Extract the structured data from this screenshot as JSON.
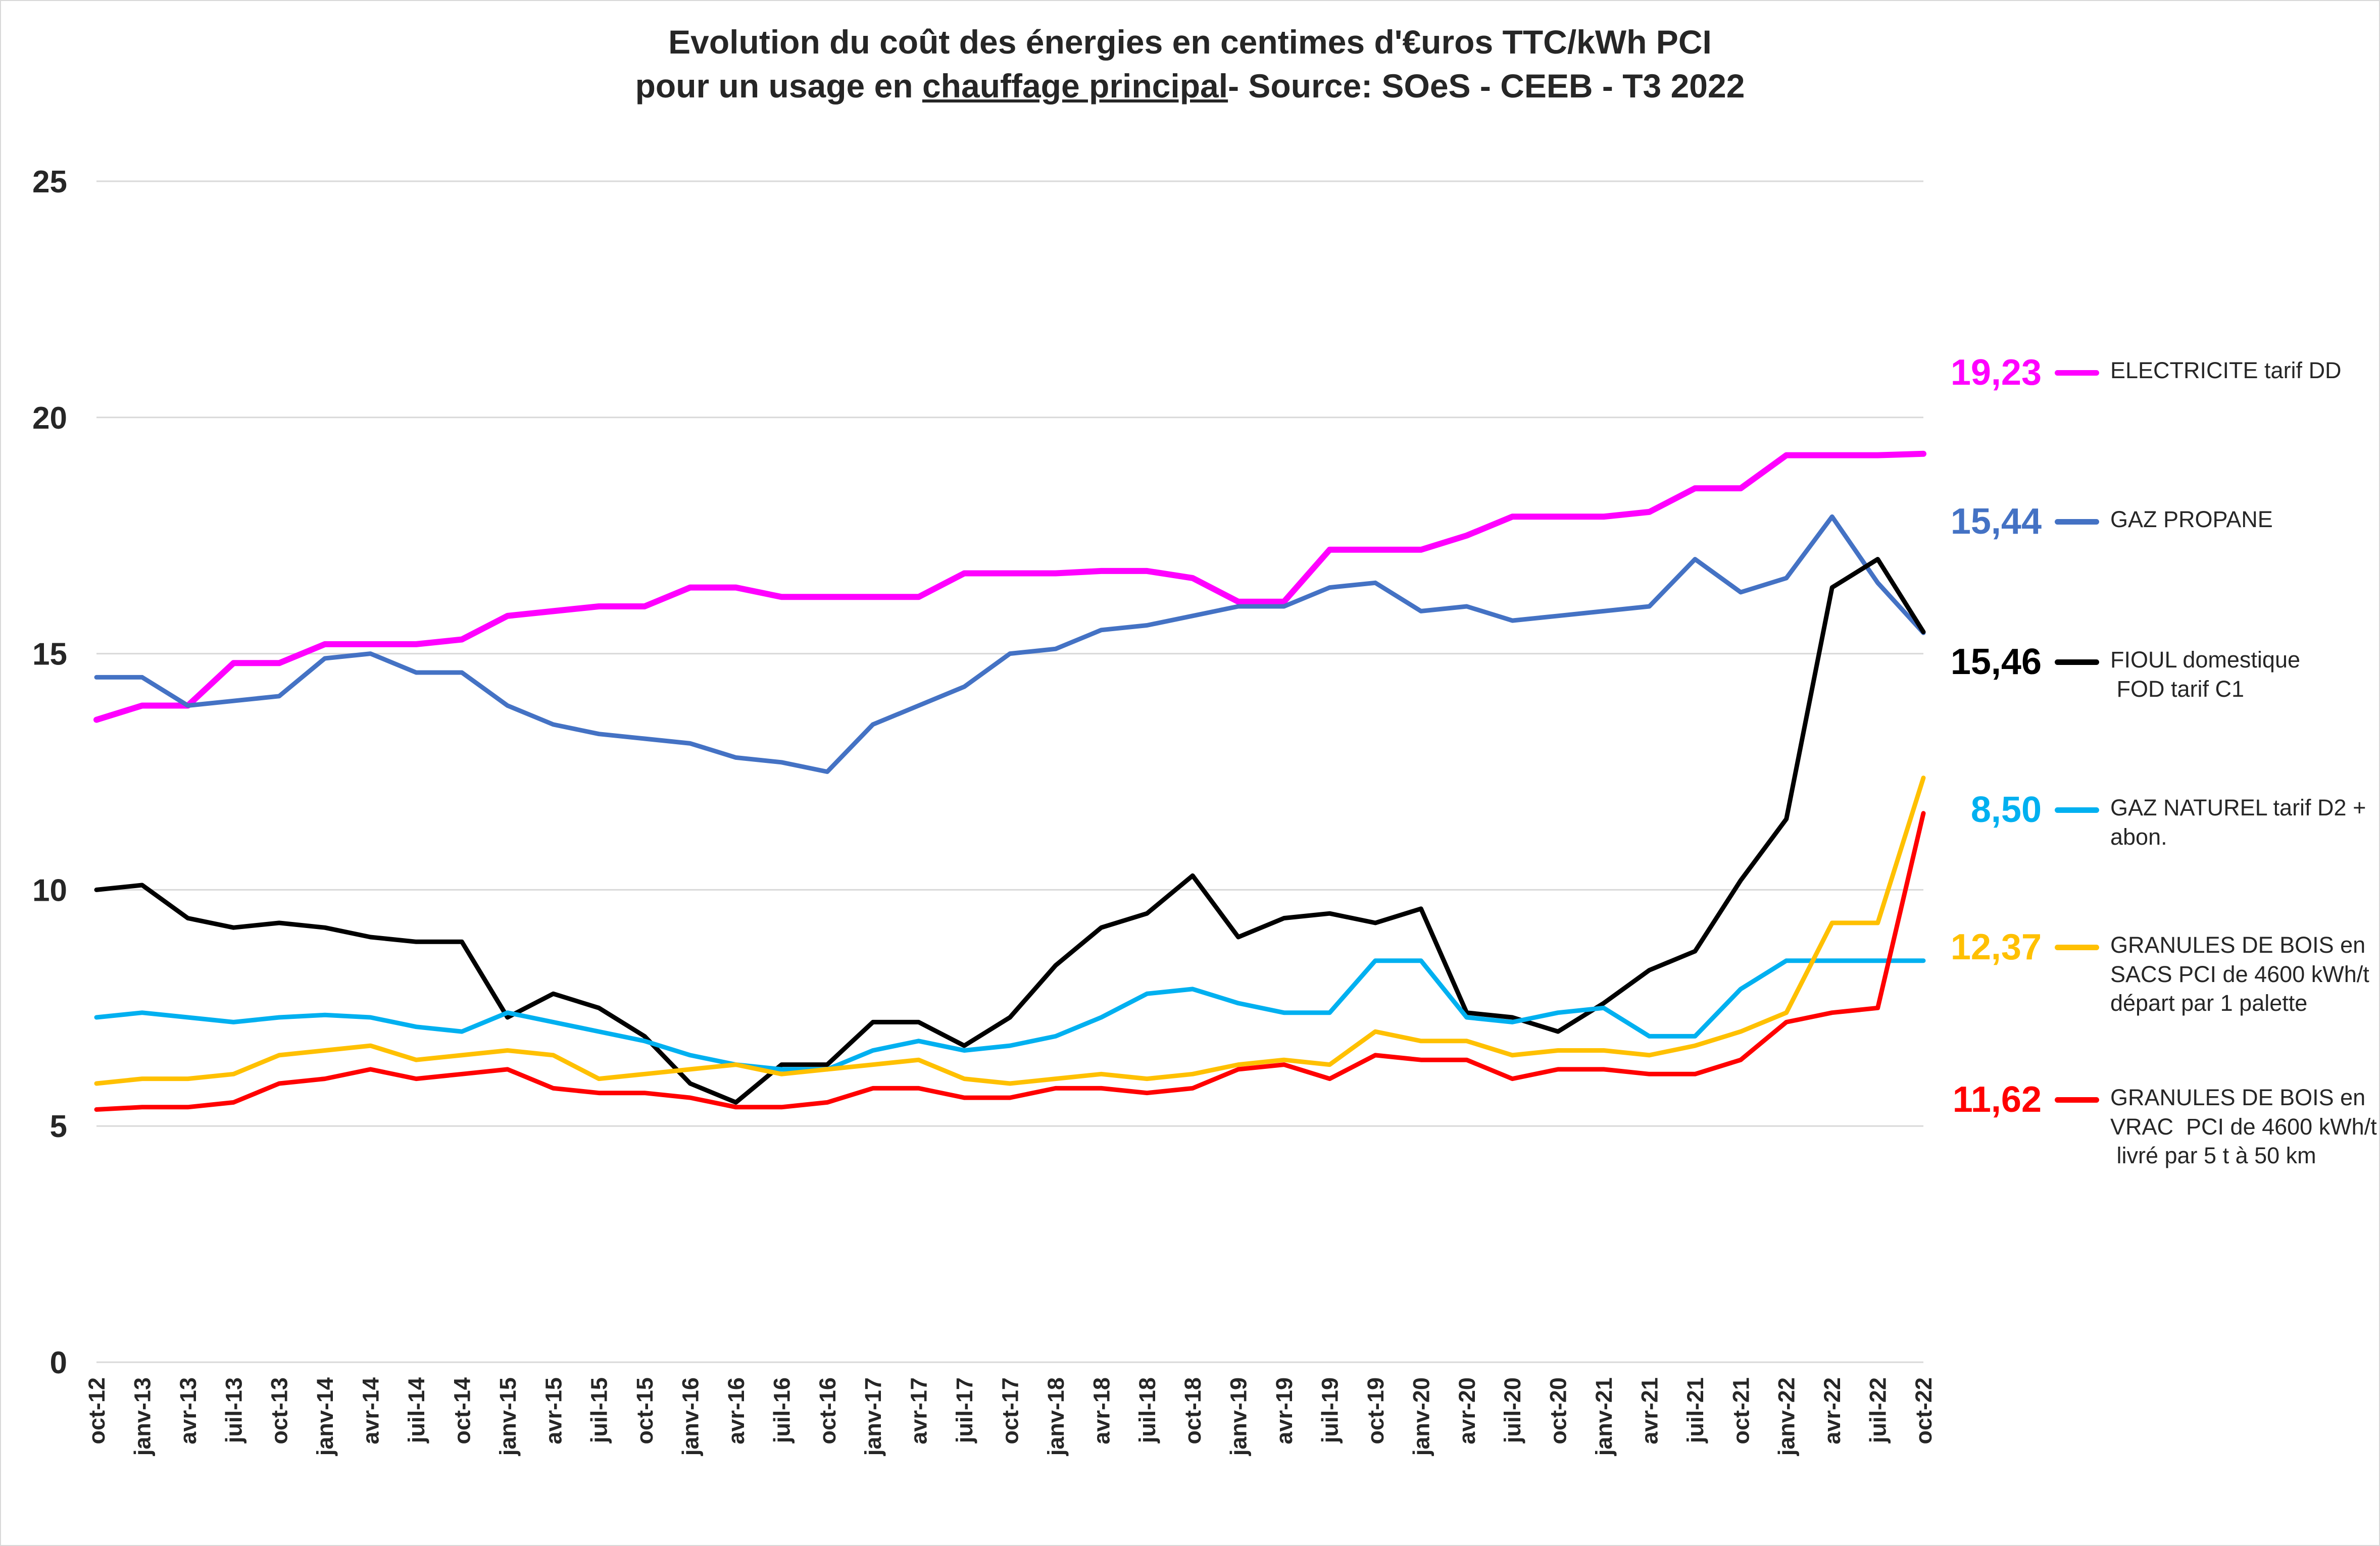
{
  "title": {
    "line1": "Evolution du coût des énergies en centimes d'€uros TTC/kWh PCI",
    "line2_prefix": "pour un usage en ",
    "line2_underlined": "chauffage principal",
    "line2_suffix": "- Source: SOeS - CEEB - T3 2022"
  },
  "legend": [
    {
      "id": "electricite",
      "value": "19,23",
      "color": "#FF00FF",
      "name": "ELECTRICITE tarif DD"
    },
    {
      "id": "gaz-propane",
      "value": "15,44",
      "color": "#4472C4",
      "name": "GAZ PROPANE"
    },
    {
      "id": "fioul",
      "value": "15,46",
      "color": "#000000",
      "name": "FIOUL domestique\n FOD tarif C1"
    },
    {
      "id": "gaz-naturel",
      "value": "8,50",
      "color": "#00B0F0",
      "name": "GAZ NATUREL tarif D2 +\nabon."
    },
    {
      "id": "granules-sacs",
      "value": "12,37",
      "color": "#FFC000",
      "name": "GRANULES DE BOIS en\nSACS PCI de 4600 kWh/t\ndépart par 1 palette"
    },
    {
      "id": "granules-vrac",
      "value": "11,62",
      "color": "#FF0000",
      "name": "GRANULES DE BOIS en\nVRAC  PCI de 4600 kWh/t\n livré par 5 t à 50 km"
    }
  ],
  "chart_data": {
    "type": "line",
    "title": "Evolution du coût des énergies en centimes d'€uros TTC/kWh PCI pour un usage en chauffage principal - Source: SOeS - CEEB - T3 2022",
    "xlabel": "",
    "ylabel": "centimes d'euros TTC/kWh PCI",
    "ylim": [
      0,
      25
    ],
    "y_ticks": [
      0,
      5,
      10,
      15,
      20,
      25
    ],
    "grid": "horizontal",
    "legend_position": "right",
    "categories": [
      "oct-12",
      "janv-13",
      "avr-13",
      "juil-13",
      "oct-13",
      "janv-14",
      "avr-14",
      "juil-14",
      "oct-14",
      "janv-15",
      "avr-15",
      "juil-15",
      "oct-15",
      "janv-16",
      "avr-16",
      "juil-16",
      "oct-16",
      "janv-17",
      "avr-17",
      "juil-17",
      "oct-17",
      "janv-18",
      "avr-18",
      "juil-18",
      "oct-18",
      "janv-19",
      "avr-19",
      "juil-19",
      "oct-19",
      "janv-20",
      "avr-20",
      "juil-20",
      "oct-20",
      "janv-21",
      "avr-21",
      "juil-21",
      "oct-21",
      "janv-22",
      "avr-22",
      "juil-22",
      "oct-22"
    ],
    "series": [
      {
        "id": "electricite",
        "name": "ELECTRICITE tarif DD",
        "color": "#FF00FF",
        "width": 12,
        "end_label": "19,23",
        "values": [
          13.6,
          13.9,
          13.9,
          14.8,
          14.8,
          15.2,
          15.2,
          15.2,
          15.3,
          15.8,
          15.9,
          16.0,
          16.0,
          16.4,
          16.4,
          16.2,
          16.2,
          16.2,
          16.2,
          16.7,
          16.7,
          16.7,
          16.75,
          16.75,
          16.6,
          16.1,
          16.1,
          17.2,
          17.2,
          17.2,
          17.5,
          17.9,
          17.9,
          17.9,
          18.0,
          18.5,
          18.5,
          19.2,
          19.2,
          19.2,
          19.23
        ]
      },
      {
        "id": "gaz-propane",
        "name": "GAZ PROPANE",
        "color": "#4472C4",
        "width": 9,
        "end_label": "15,44",
        "values": [
          14.5,
          14.5,
          13.9,
          14.0,
          14.1,
          14.9,
          15.0,
          14.6,
          14.6,
          13.9,
          13.5,
          13.3,
          13.2,
          13.1,
          12.8,
          12.7,
          12.5,
          13.5,
          13.9,
          14.3,
          15.0,
          15.1,
          15.5,
          15.6,
          15.8,
          16.0,
          16.0,
          16.4,
          16.5,
          15.9,
          16.0,
          15.7,
          15.8,
          15.9,
          16.0,
          17.0,
          16.3,
          16.6,
          17.9,
          16.5,
          15.44
        ]
      },
      {
        "id": "fioul",
        "name": "FIOUL domestique FOD tarif C1",
        "color": "#000000",
        "width": 9,
        "end_label": "15,46",
        "values": [
          10.0,
          10.1,
          9.4,
          9.2,
          9.3,
          9.2,
          9.0,
          8.9,
          8.9,
          7.3,
          7.8,
          7.5,
          6.9,
          5.9,
          5.5,
          6.3,
          6.3,
          7.2,
          7.2,
          6.7,
          7.3,
          8.4,
          9.2,
          9.5,
          10.3,
          9.0,
          9.4,
          9.5,
          9.3,
          9.6,
          7.4,
          7.3,
          7.0,
          7.6,
          8.3,
          8.7,
          10.2,
          11.5,
          16.4,
          17.0,
          15.46
        ]
      },
      {
        "id": "gaz-naturel",
        "name": "GAZ NATUREL tarif D2 + abon.",
        "color": "#00B0F0",
        "width": 9,
        "end_label": "8,50",
        "values": [
          7.3,
          7.4,
          7.3,
          7.2,
          7.3,
          7.35,
          7.3,
          7.1,
          7.0,
          7.4,
          7.2,
          7.0,
          6.8,
          6.5,
          6.3,
          6.2,
          6.2,
          6.6,
          6.8,
          6.6,
          6.7,
          6.9,
          7.3,
          7.8,
          7.9,
          7.6,
          7.4,
          7.4,
          8.5,
          8.5,
          7.3,
          7.2,
          7.4,
          7.5,
          6.9,
          6.9,
          7.9,
          8.5,
          8.5,
          8.5,
          8.5
        ]
      },
      {
        "id": "granules-sacs",
        "name": "GRANULES DE BOIS en SACS PCI de 4600 kWh/t départ par 1 palette",
        "color": "#FFC000",
        "width": 9,
        "end_label": "12,37",
        "values": [
          5.9,
          6.0,
          6.0,
          6.1,
          6.5,
          6.6,
          6.7,
          6.4,
          6.5,
          6.6,
          6.5,
          6.0,
          6.1,
          6.2,
          6.3,
          6.1,
          6.2,
          6.3,
          6.4,
          6.0,
          5.9,
          6.0,
          6.1,
          6.0,
          6.1,
          6.3,
          6.4,
          6.3,
          7.0,
          6.8,
          6.8,
          6.5,
          6.6,
          6.6,
          6.5,
          6.7,
          7.0,
          7.4,
          9.3,
          9.3,
          12.37
        ]
      },
      {
        "id": "granules-vrac",
        "name": "GRANULES DE BOIS en VRAC PCI de 4600 kWh/t livré par 5 t à 50 km",
        "color": "#FF0000",
        "width": 9,
        "end_label": "11,62",
        "values": [
          5.35,
          5.4,
          5.4,
          5.5,
          5.9,
          6.0,
          6.2,
          6.0,
          6.1,
          6.2,
          5.8,
          5.7,
          5.7,
          5.6,
          5.4,
          5.4,
          5.5,
          5.8,
          5.8,
          5.6,
          5.6,
          5.8,
          5.8,
          5.7,
          5.8,
          6.2,
          6.3,
          6.0,
          6.5,
          6.4,
          6.4,
          6.0,
          6.2,
          6.2,
          6.1,
          6.1,
          6.4,
          7.2,
          7.4,
          7.5,
          11.62
        ]
      }
    ]
  }
}
